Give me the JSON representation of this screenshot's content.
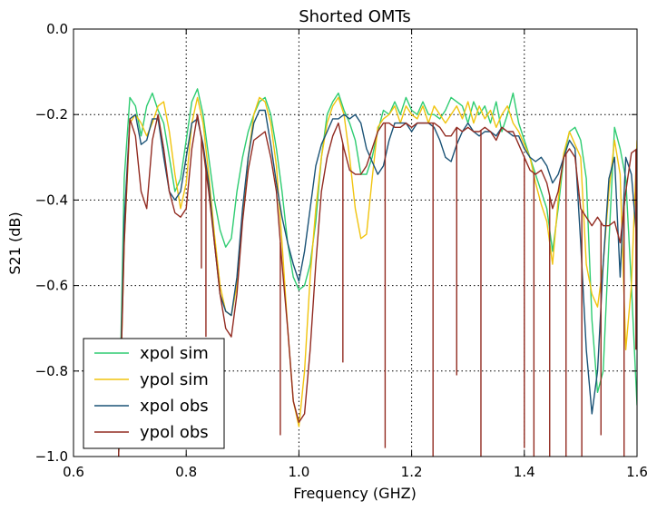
{
  "chart_data": {
    "type": "line",
    "title": "Shorted OMTs",
    "xlabel": "Frequency (GHZ)",
    "ylabel": "S21 (dB)",
    "xlim": [
      0.6,
      1.6
    ],
    "ylim": [
      -1.0,
      0.0
    ],
    "xticks": [
      0.6,
      0.8,
      1.0,
      1.2,
      1.4,
      1.6
    ],
    "xtick_labels": [
      "0.6",
      "0.8",
      "1.0",
      "1.2",
      "1.4",
      "1.6"
    ],
    "yticks": [
      -1.0,
      -0.8,
      -0.6,
      -0.4,
      -0.2,
      0.0
    ],
    "ytick_labels": [
      "−1.0",
      "−0.8",
      "−0.6",
      "−0.4",
      "−0.2",
      "0.0"
    ],
    "grid": true,
    "legend_position": "lower-left",
    "series": [
      {
        "name": "xpol sim",
        "color": "#2ecc71",
        "x": [
          0.68,
          0.69,
          0.7,
          0.71,
          0.72,
          0.73,
          0.74,
          0.75,
          0.76,
          0.77,
          0.78,
          0.79,
          0.8,
          0.81,
          0.82,
          0.83,
          0.84,
          0.85,
          0.86,
          0.87,
          0.88,
          0.89,
          0.9,
          0.91,
          0.92,
          0.93,
          0.94,
          0.95,
          0.96,
          0.97,
          0.98,
          0.99,
          1.0,
          1.01,
          1.02,
          1.03,
          1.04,
          1.05,
          1.06,
          1.07,
          1.08,
          1.09,
          1.1,
          1.11,
          1.12,
          1.13,
          1.14,
          1.15,
          1.16,
          1.17,
          1.18,
          1.19,
          1.2,
          1.21,
          1.22,
          1.23,
          1.24,
          1.25,
          1.26,
          1.27,
          1.28,
          1.29,
          1.3,
          1.31,
          1.32,
          1.33,
          1.34,
          1.35,
          1.36,
          1.37,
          1.38,
          1.39,
          1.4,
          1.41,
          1.42,
          1.43,
          1.44,
          1.45,
          1.46,
          1.47,
          1.48,
          1.49,
          1.5,
          1.51,
          1.52,
          1.53,
          1.54,
          1.55,
          1.56,
          1.57,
          1.58,
          1.59,
          1.6
        ],
        "y": [
          -1.0,
          -0.35,
          -0.16,
          -0.18,
          -0.25,
          -0.18,
          -0.15,
          -0.19,
          -0.22,
          -0.3,
          -0.38,
          -0.35,
          -0.26,
          -0.17,
          -0.14,
          -0.2,
          -0.3,
          -0.4,
          -0.47,
          -0.51,
          -0.49,
          -0.38,
          -0.3,
          -0.24,
          -0.2,
          -0.17,
          -0.16,
          -0.2,
          -0.28,
          -0.38,
          -0.5,
          -0.58,
          -0.61,
          -0.6,
          -0.55,
          -0.45,
          -0.3,
          -0.2,
          -0.17,
          -0.15,
          -0.19,
          -0.22,
          -0.26,
          -0.34,
          -0.34,
          -0.3,
          -0.24,
          -0.19,
          -0.2,
          -0.17,
          -0.2,
          -0.16,
          -0.19,
          -0.2,
          -0.17,
          -0.2,
          -0.2,
          -0.21,
          -0.19,
          -0.16,
          -0.17,
          -0.18,
          -0.22,
          -0.17,
          -0.2,
          -0.18,
          -0.22,
          -0.17,
          -0.24,
          -0.2,
          -0.15,
          -0.22,
          -0.26,
          -0.3,
          -0.34,
          -0.38,
          -0.42,
          -0.52,
          -0.42,
          -0.3,
          -0.24,
          -0.23,
          -0.26,
          -0.35,
          -0.68,
          -0.85,
          -0.8,
          -0.5,
          -0.23,
          -0.28,
          -0.35,
          -0.6,
          -0.88
        ]
      },
      {
        "name": "ypol sim",
        "color": "#f1c40f",
        "x": [
          0.68,
          0.69,
          0.7,
          0.71,
          0.72,
          0.73,
          0.74,
          0.75,
          0.76,
          0.77,
          0.78,
          0.79,
          0.8,
          0.81,
          0.82,
          0.83,
          0.84,
          0.85,
          0.86,
          0.87,
          0.88,
          0.89,
          0.9,
          0.91,
          0.92,
          0.93,
          0.94,
          0.95,
          0.96,
          0.97,
          0.98,
          0.99,
          1.0,
          1.01,
          1.02,
          1.03,
          1.04,
          1.05,
          1.06,
          1.07,
          1.08,
          1.09,
          1.1,
          1.11,
          1.12,
          1.13,
          1.14,
          1.15,
          1.16,
          1.17,
          1.18,
          1.19,
          1.2,
          1.21,
          1.22,
          1.23,
          1.24,
          1.25,
          1.26,
          1.27,
          1.28,
          1.29,
          1.3,
          1.31,
          1.32,
          1.33,
          1.34,
          1.35,
          1.36,
          1.37,
          1.38,
          1.39,
          1.4,
          1.41,
          1.42,
          1.43,
          1.44,
          1.45,
          1.46,
          1.47,
          1.48,
          1.49,
          1.5,
          1.51,
          1.52,
          1.53,
          1.54,
          1.55,
          1.56,
          1.57,
          1.58,
          1.59,
          1.6
        ],
        "y": [
          -1.0,
          -0.5,
          -0.22,
          -0.2,
          -0.22,
          -0.25,
          -0.22,
          -0.18,
          -0.17,
          -0.24,
          -0.34,
          -0.42,
          -0.36,
          -0.22,
          -0.16,
          -0.22,
          -0.34,
          -0.48,
          -0.6,
          -0.66,
          -0.67,
          -0.6,
          -0.44,
          -0.3,
          -0.2,
          -0.16,
          -0.17,
          -0.22,
          -0.32,
          -0.5,
          -0.7,
          -0.87,
          -0.93,
          -0.8,
          -0.58,
          -0.42,
          -0.3,
          -0.22,
          -0.18,
          -0.16,
          -0.2,
          -0.3,
          -0.42,
          -0.49,
          -0.48,
          -0.35,
          -0.23,
          -0.21,
          -0.2,
          -0.18,
          -0.22,
          -0.18,
          -0.2,
          -0.21,
          -0.18,
          -0.22,
          -0.18,
          -0.2,
          -0.22,
          -0.2,
          -0.18,
          -0.21,
          -0.17,
          -0.22,
          -0.18,
          -0.21,
          -0.19,
          -0.23,
          -0.2,
          -0.18,
          -0.22,
          -0.24,
          -0.27,
          -0.3,
          -0.36,
          -0.41,
          -0.45,
          -0.55,
          -0.4,
          -0.29,
          -0.24,
          -0.27,
          -0.3,
          -0.55,
          -0.62,
          -0.65,
          -0.55,
          -0.38,
          -0.26,
          -0.34,
          -0.75,
          -0.6,
          -0.26
        ]
      },
      {
        "name": "xpol obs",
        "color": "#1a5276",
        "x": [
          0.68,
          0.69,
          0.7,
          0.71,
          0.72,
          0.73,
          0.74,
          0.75,
          0.76,
          0.77,
          0.78,
          0.79,
          0.8,
          0.81,
          0.82,
          0.83,
          0.84,
          0.85,
          0.86,
          0.87,
          0.88,
          0.89,
          0.9,
          0.91,
          0.92,
          0.93,
          0.94,
          0.95,
          0.96,
          0.97,
          0.98,
          0.99,
          1.0,
          1.01,
          1.02,
          1.03,
          1.04,
          1.05,
          1.06,
          1.07,
          1.08,
          1.09,
          1.1,
          1.11,
          1.12,
          1.13,
          1.14,
          1.15,
          1.16,
          1.17,
          1.18,
          1.19,
          1.2,
          1.21,
          1.22,
          1.23,
          1.24,
          1.25,
          1.26,
          1.27,
          1.28,
          1.29,
          1.3,
          1.31,
          1.32,
          1.33,
          1.34,
          1.35,
          1.36,
          1.37,
          1.38,
          1.39,
          1.4,
          1.41,
          1.42,
          1.43,
          1.44,
          1.45,
          1.46,
          1.47,
          1.48,
          1.49,
          1.5,
          1.51,
          1.52,
          1.53,
          1.54,
          1.55,
          1.56,
          1.57,
          1.58,
          1.59,
          1.6
        ],
        "y": [
          -1.0,
          -0.45,
          -0.21,
          -0.2,
          -0.27,
          -0.26,
          -0.21,
          -0.21,
          -0.3,
          -0.38,
          -0.4,
          -0.38,
          -0.3,
          -0.22,
          -0.21,
          -0.27,
          -0.36,
          -0.5,
          -0.62,
          -0.66,
          -0.67,
          -0.58,
          -0.42,
          -0.3,
          -0.22,
          -0.19,
          -0.19,
          -0.27,
          -0.36,
          -0.44,
          -0.5,
          -0.55,
          -0.59,
          -0.52,
          -0.42,
          -0.32,
          -0.27,
          -0.24,
          -0.21,
          -0.21,
          -0.2,
          -0.21,
          -0.2,
          -0.22,
          -0.28,
          -0.31,
          -0.34,
          -0.32,
          -0.26,
          -0.22,
          -0.22,
          -0.22,
          -0.24,
          -0.22,
          -0.22,
          -0.22,
          -0.23,
          -0.26,
          -0.3,
          -0.31,
          -0.27,
          -0.24,
          -0.22,
          -0.24,
          -0.25,
          -0.24,
          -0.24,
          -0.25,
          -0.23,
          -0.24,
          -0.25,
          -0.25,
          -0.28,
          -0.3,
          -0.31,
          -0.3,
          -0.32,
          -0.36,
          -0.34,
          -0.3,
          -0.26,
          -0.28,
          -0.5,
          -0.75,
          -0.9,
          -0.8,
          -0.55,
          -0.35,
          -0.3,
          -0.58,
          -0.3,
          -0.34,
          -0.5
        ]
      },
      {
        "name": "ypol obs",
        "color": "#922b21",
        "x": [
          0.68,
          0.69,
          0.7,
          0.71,
          0.72,
          0.73,
          0.74,
          0.75,
          0.76,
          0.77,
          0.78,
          0.79,
          0.8,
          0.81,
          0.82,
          0.83,
          0.84,
          0.85,
          0.86,
          0.87,
          0.88,
          0.89,
          0.9,
          0.91,
          0.92,
          0.93,
          0.94,
          0.95,
          0.96,
          0.97,
          0.98,
          0.99,
          1.0,
          1.01,
          1.02,
          1.03,
          1.04,
          1.05,
          1.06,
          1.07,
          1.08,
          1.09,
          1.1,
          1.11,
          1.12,
          1.13,
          1.14,
          1.15,
          1.16,
          1.17,
          1.18,
          1.19,
          1.2,
          1.21,
          1.22,
          1.23,
          1.24,
          1.25,
          1.26,
          1.27,
          1.28,
          1.29,
          1.3,
          1.31,
          1.32,
          1.33,
          1.34,
          1.35,
          1.36,
          1.37,
          1.38,
          1.39,
          1.4,
          1.41,
          1.42,
          1.43,
          1.44,
          1.45,
          1.46,
          1.47,
          1.48,
          1.49,
          1.5,
          1.51,
          1.52,
          1.53,
          1.54,
          1.55,
          1.56,
          1.57,
          1.58,
          1.59,
          1.6
        ],
        "y": [
          -1.0,
          -0.5,
          -0.21,
          -0.25,
          -0.38,
          -0.42,
          -0.26,
          -0.2,
          -0.28,
          -0.38,
          -0.43,
          -0.44,
          -0.42,
          -0.28,
          -0.2,
          -0.28,
          -0.38,
          -0.5,
          -0.62,
          -0.7,
          -0.72,
          -0.62,
          -0.45,
          -0.33,
          -0.26,
          -0.25,
          -0.24,
          -0.3,
          -0.38,
          -0.55,
          -0.7,
          -0.87,
          -0.92,
          -0.9,
          -0.75,
          -0.55,
          -0.38,
          -0.3,
          -0.25,
          -0.22,
          -0.28,
          -0.33,
          -0.34,
          -0.34,
          -0.32,
          -0.28,
          -0.24,
          -0.22,
          -0.22,
          -0.23,
          -0.23,
          -0.22,
          -0.23,
          -0.22,
          -0.22,
          -0.22,
          -0.22,
          -0.23,
          -0.25,
          -0.25,
          -0.23,
          -0.24,
          -0.23,
          -0.24,
          -0.24,
          -0.23,
          -0.24,
          -0.26,
          -0.23,
          -0.24,
          -0.24,
          -0.27,
          -0.3,
          -0.33,
          -0.34,
          -0.33,
          -0.36,
          -0.42,
          -0.38,
          -0.3,
          -0.28,
          -0.3,
          -0.42,
          -0.44,
          -0.46,
          -0.44,
          -0.46,
          -0.46,
          -0.45,
          -0.5,
          -0.38,
          -0.29,
          -0.28
        ]
      }
    ],
    "spikes": [
      {
        "series": "ypol obs",
        "x": 0.827,
        "y": -0.56
      },
      {
        "series": "ypol obs",
        "x": 0.835,
        "y": -0.72
      },
      {
        "series": "ypol obs",
        "x": 0.967,
        "y": -0.95
      },
      {
        "series": "ypol obs",
        "x": 1.078,
        "y": -0.78
      },
      {
        "series": "ypol obs",
        "x": 1.153,
        "y": -0.98
      },
      {
        "series": "ypol obs",
        "x": 1.238,
        "y": -1.0
      },
      {
        "series": "ypol obs",
        "x": 1.28,
        "y": -0.81
      },
      {
        "series": "ypol obs",
        "x": 1.323,
        "y": -1.0
      },
      {
        "series": "ypol obs",
        "x": 1.4,
        "y": -0.98
      },
      {
        "series": "ypol obs",
        "x": 1.417,
        "y": -1.0
      },
      {
        "series": "ypol obs",
        "x": 1.445,
        "y": -1.0
      },
      {
        "series": "ypol obs",
        "x": 1.474,
        "y": -1.0
      },
      {
        "series": "ypol obs",
        "x": 1.502,
        "y": -1.0
      },
      {
        "series": "ypol obs",
        "x": 1.536,
        "y": -0.95
      },
      {
        "series": "ypol obs",
        "x": 1.577,
        "y": -1.0
      },
      {
        "series": "ypol obs",
        "x": 1.598,
        "y": -0.75
      }
    ]
  }
}
